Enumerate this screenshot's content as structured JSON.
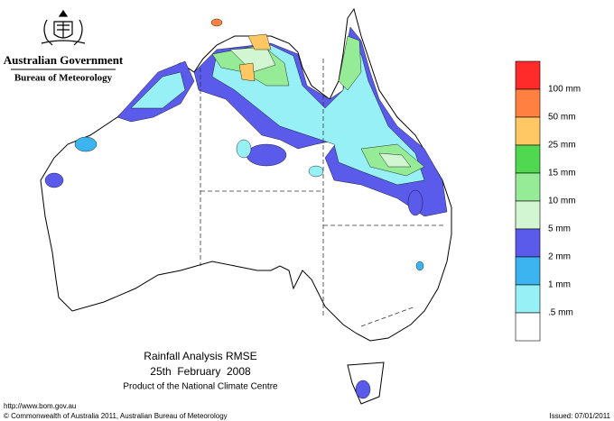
{
  "header": {
    "government": "Australian Government",
    "bureau": "Bureau of Meteorology"
  },
  "legend": {
    "colors": [
      "#ff2a2a",
      "#ff8040",
      "#ffc864",
      "#50d850",
      "#96ec96",
      "#d2f5d2",
      "#5a5aeb",
      "#3cb4f0",
      "#96f0f5",
      "#ffffff"
    ],
    "labels": [
      "100 mm",
      "50 mm",
      "25 mm",
      "15 mm",
      "10 mm",
      "5 mm",
      "2 mm",
      "1 mm",
      ".5 mm"
    ]
  },
  "caption": {
    "title": "Rainfall Analysis RMSE",
    "date": "25th  February  2008",
    "credit": "Product of the National Climate Centre"
  },
  "footer": {
    "url": "http://www.bom.gov.au",
    "copyright": "© Commonwealth of Australia 2011, Australian Bureau of Meteorology",
    "issued": "Issued: 07/01/2011"
  }
}
